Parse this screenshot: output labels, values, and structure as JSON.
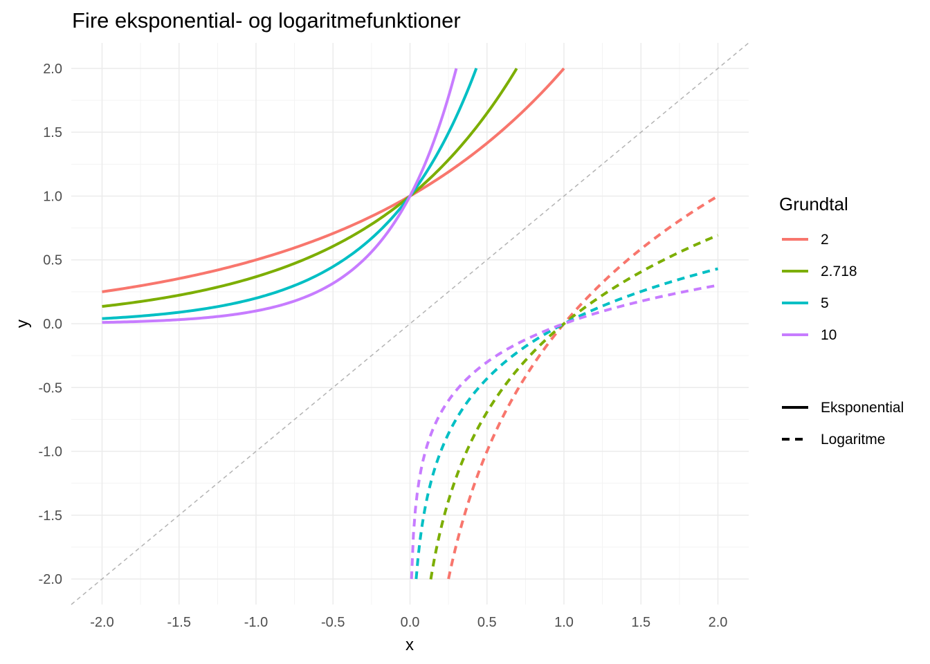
{
  "chart_data": {
    "type": "line",
    "title": "Fire eksponential- og logaritmefunktioner",
    "xlabel": "x",
    "ylabel": "y",
    "xlim": [
      -2.2,
      2.2
    ],
    "ylim": [
      -2.2,
      2.2
    ],
    "x_ticks": [
      -2.0,
      -1.5,
      -1.0,
      -0.5,
      0.0,
      0.5,
      1.0,
      1.5,
      2.0
    ],
    "x_tick_labels": [
      "-2.0",
      "-1.5",
      "-1.0",
      "-0.5",
      "0.0",
      "0.5",
      "1.0",
      "1.5",
      "2.0"
    ],
    "y_ticks": [
      -2.0,
      -1.5,
      -1.0,
      -0.5,
      0.0,
      0.5,
      1.0,
      1.5,
      2.0
    ],
    "y_tick_labels": [
      "-2.0",
      "-1.5",
      "-1.0",
      "-0.5",
      "0.0",
      "0.5",
      "1.0",
      "1.5",
      "2.0"
    ],
    "grid": true,
    "legend": {
      "position": "right",
      "color_title": "Grundtal",
      "bases": [
        {
          "label": "2",
          "base": 2,
          "color": "#f8766d"
        },
        {
          "label": "2.718",
          "base": 2.718,
          "color": "#7cae00"
        },
        {
          "label": "5",
          "base": 5,
          "color": "#00bfc4"
        },
        {
          "label": "10",
          "base": 10,
          "color": "#c77cff"
        }
      ],
      "linetypes": [
        {
          "label": "Eksponential",
          "style": "solid"
        },
        {
          "label": "Logaritme",
          "style": "dashed"
        }
      ]
    },
    "reference_line": {
      "slope": 1,
      "intercept": 0,
      "style": "dashed",
      "color": "#b3b3b3"
    },
    "series": [
      {
        "name": "2",
        "type": "Eksponential",
        "x": [
          -2.0,
          -1.5,
          -1.0,
          -0.5,
          0.0,
          0.5,
          1.0
        ],
        "y": [
          0.25,
          0.354,
          0.5,
          0.707,
          1.0,
          1.414,
          2.0
        ]
      },
      {
        "name": "2.718",
        "type": "Eksponential",
        "x": [
          -2.0,
          -1.5,
          -1.0,
          -0.5,
          0.0,
          0.5,
          0.693
        ],
        "y": [
          0.135,
          0.223,
          0.368,
          0.607,
          1.0,
          1.649,
          2.0
        ]
      },
      {
        "name": "5",
        "type": "Eksponential",
        "x": [
          -2.0,
          -1.5,
          -1.0,
          -0.5,
          0.0,
          0.25,
          0.431
        ],
        "y": [
          0.04,
          0.089,
          0.2,
          0.447,
          1.0,
          1.495,
          2.0
        ]
      },
      {
        "name": "10",
        "type": "Eksponential",
        "x": [
          -2.0,
          -1.5,
          -1.0,
          -0.5,
          0.0,
          0.15,
          0.301
        ],
        "y": [
          0.01,
          0.032,
          0.1,
          0.316,
          1.0,
          1.413,
          2.0
        ]
      },
      {
        "name": "2",
        "type": "Logaritme",
        "x": [
          0.25,
          0.5,
          0.75,
          1.0,
          1.5,
          2.0
        ],
        "y": [
          -2.0,
          -1.0,
          -0.415,
          0.0,
          0.585,
          1.0
        ]
      },
      {
        "name": "2.718",
        "type": "Logaritme",
        "x": [
          0.135,
          0.25,
          0.5,
          0.75,
          1.0,
          1.5,
          2.0
        ],
        "y": [
          -2.0,
          -1.386,
          -0.693,
          -0.288,
          0.0,
          0.405,
          0.693
        ]
      },
      {
        "name": "5",
        "type": "Logaritme",
        "x": [
          0.04,
          0.1,
          0.25,
          0.5,
          0.75,
          1.0,
          1.5,
          2.0
        ],
        "y": [
          -2.0,
          -1.431,
          -0.861,
          -0.431,
          -0.179,
          0.0,
          0.252,
          0.431
        ]
      },
      {
        "name": "10",
        "type": "Logaritme",
        "x": [
          0.01,
          0.05,
          0.1,
          0.25,
          0.5,
          0.75,
          1.0,
          1.5,
          2.0
        ],
        "y": [
          -2.0,
          -1.301,
          -1.0,
          -0.602,
          -0.301,
          -0.125,
          0.0,
          0.176,
          0.301
        ]
      }
    ]
  }
}
